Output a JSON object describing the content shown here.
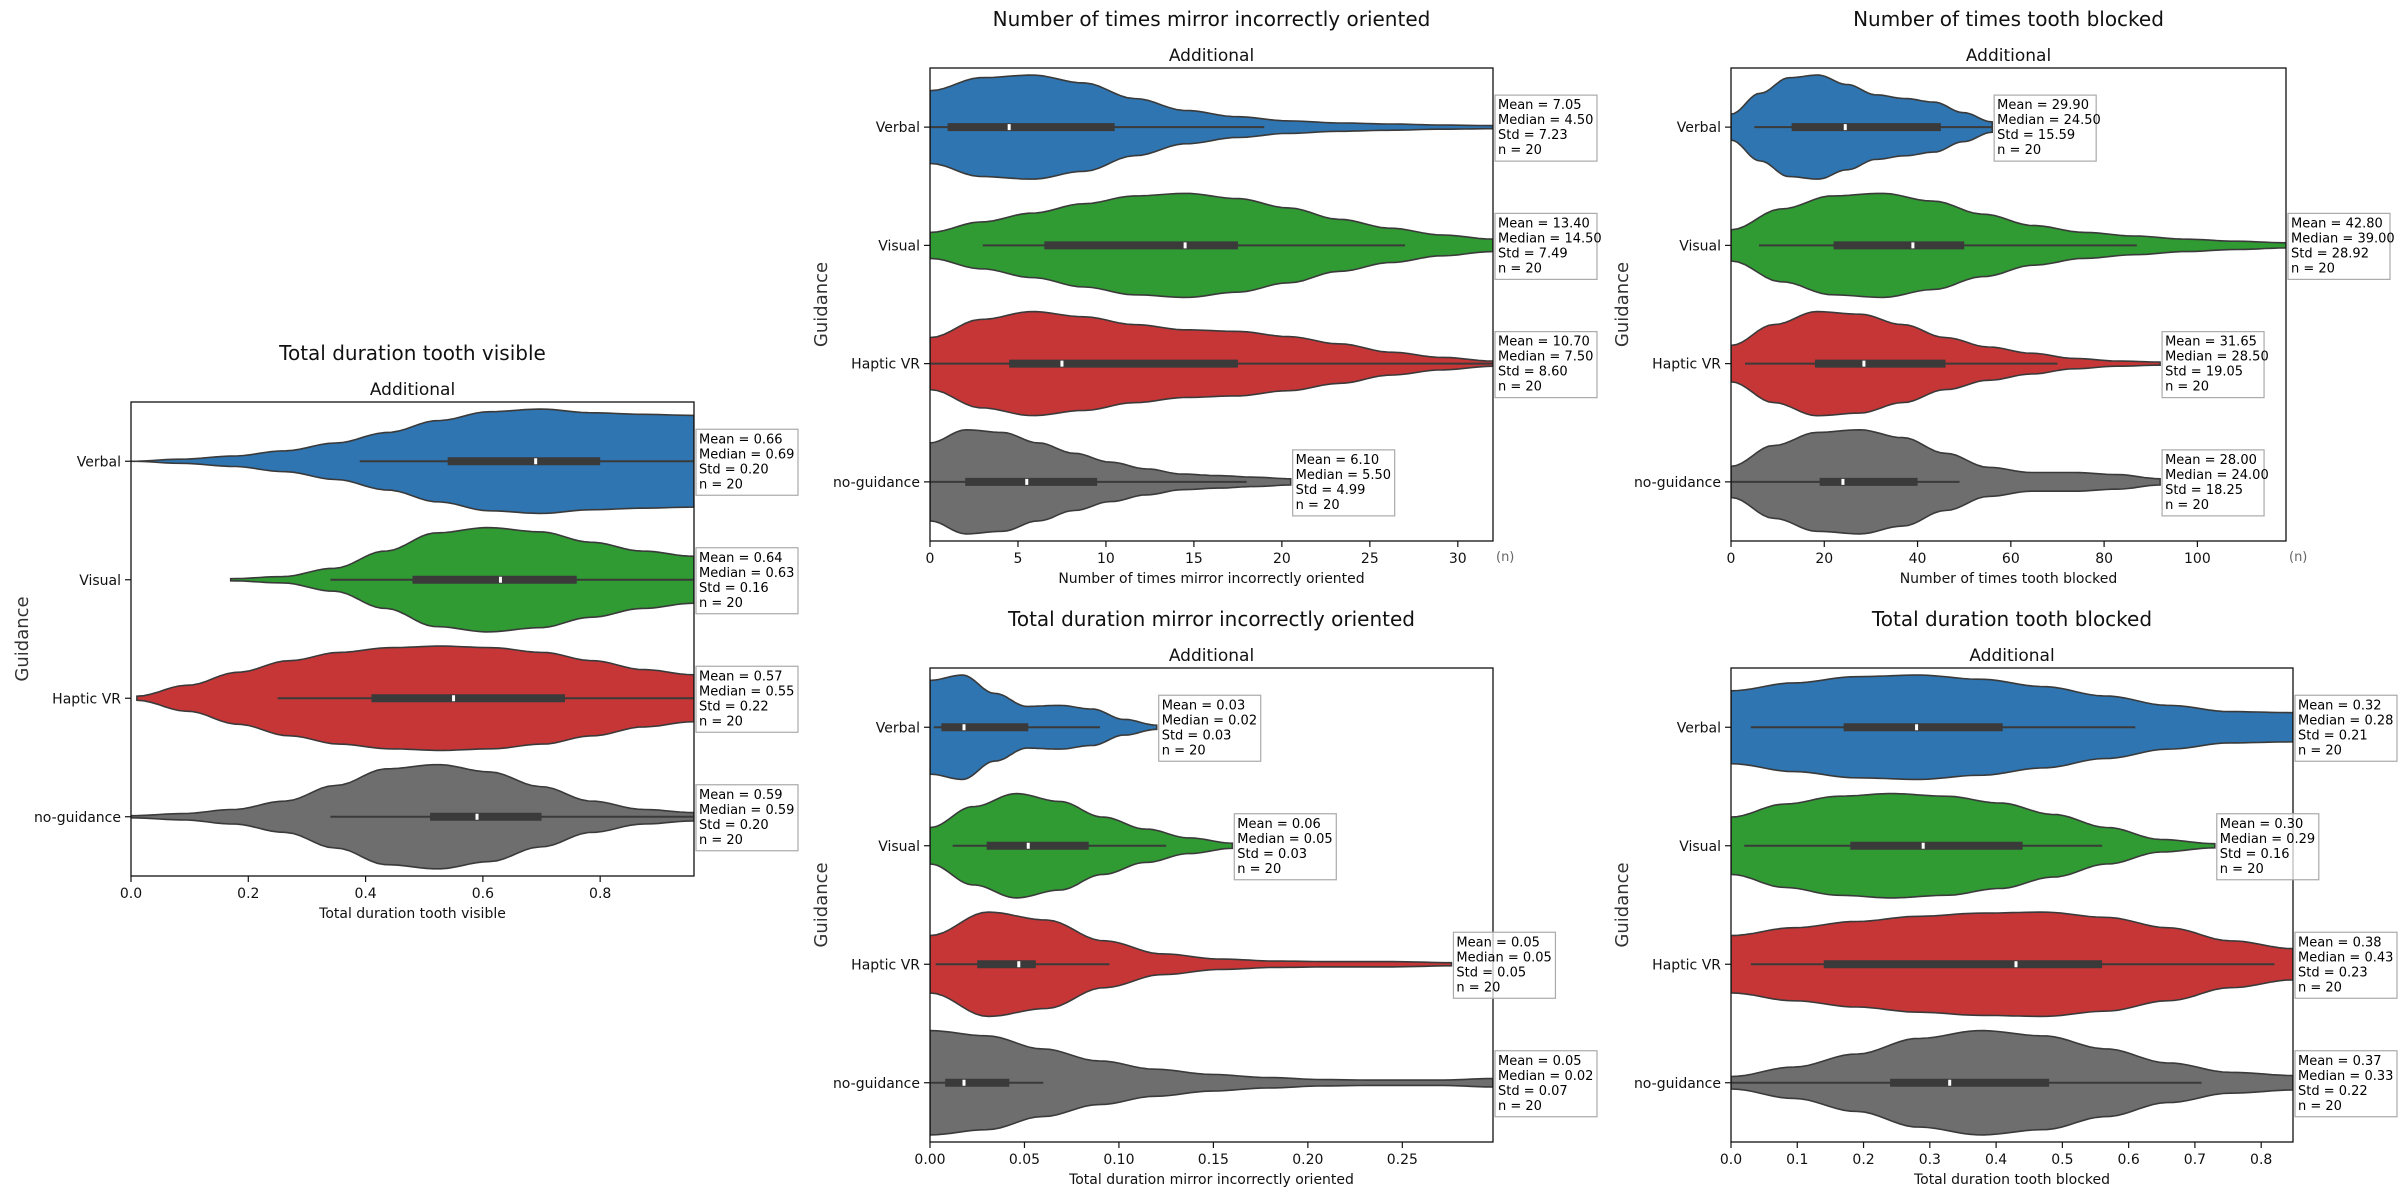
{
  "colors": {
    "Verbal": "#2e75b1",
    "Visual": "#309a33",
    "Haptic VR": "#c73637",
    "no-guidance": "#6e6e6e"
  },
  "chart_data": [
    {
      "type": "violin",
      "title": "Total duration tooth visible",
      "subtitle": "Additional",
      "xlabel": "Total duration tooth visible",
      "ylabel": "Guidance",
      "unit_label": "",
      "xlim": [
        0,
        0.96
      ],
      "xticks": [
        0,
        0.2,
        0.4,
        0.6,
        0.8
      ],
      "xtick_labels": [
        "0.0",
        "0.2",
        "0.4",
        "0.6",
        "0.8"
      ],
      "categories": [
        "Verbal",
        "Visual",
        "Haptic VR",
        "no-guidance"
      ],
      "series": [
        {
          "name": "Verbal",
          "min": 0.0,
          "max": 0.96,
          "q1": 0.54,
          "median": 0.69,
          "q3": 0.8,
          "whisker_low": 0.39,
          "whisker_high": 0.96,
          "density": [
            0.0,
            0.04,
            0.1,
            0.2,
            0.35,
            0.55,
            0.78,
            0.95,
            1.0,
            0.93,
            0.9,
            0.88
          ],
          "stats": {
            "mean": "Mean = 0.66",
            "median": "Median = 0.69",
            "std": "Std = 0.20",
            "n": "n = 20"
          }
        },
        {
          "name": "Visual",
          "min": 0.17,
          "max": 0.96,
          "q1": 0.48,
          "median": 0.63,
          "q3": 0.76,
          "whisker_low": 0.34,
          "whisker_high": 0.96,
          "density": [
            0.02,
            0.06,
            0.22,
            0.55,
            0.9,
            1.0,
            0.92,
            0.72,
            0.55,
            0.45
          ],
          "stats": {
            "mean": "Mean = 0.64",
            "median": "Median = 0.63",
            "std": "Std = 0.16",
            "n": "n = 20"
          }
        },
        {
          "name": "Haptic VR",
          "min": 0.01,
          "max": 0.96,
          "q1": 0.41,
          "median": 0.55,
          "q3": 0.74,
          "whisker_low": 0.25,
          "whisker_high": 0.96,
          "density": [
            0.04,
            0.25,
            0.5,
            0.72,
            0.88,
            0.97,
            1.0,
            0.97,
            0.88,
            0.72,
            0.55,
            0.45
          ],
          "stats": {
            "mean": "Mean = 0.57",
            "median": "Median = 0.55",
            "std": "Std = 0.22",
            "n": "n = 20"
          }
        },
        {
          "name": "no-guidance",
          "min": 0.0,
          "max": 0.96,
          "q1": 0.51,
          "median": 0.59,
          "q3": 0.7,
          "whisker_low": 0.34,
          "whisker_high": 0.96,
          "density": [
            0.02,
            0.06,
            0.14,
            0.3,
            0.6,
            0.92,
            1.0,
            0.86,
            0.58,
            0.3,
            0.14,
            0.08
          ],
          "stats": {
            "mean": "Mean = 0.59",
            "median": "Median = 0.59",
            "std": "Std = 0.20",
            "n": "n = 20"
          }
        }
      ]
    },
    {
      "type": "violin",
      "title": "Number of times mirror incorrectly oriented",
      "subtitle": "Additional",
      "xlabel": "Number of times mirror incorrectly oriented",
      "ylabel": "Guidance",
      "unit_label": "(n)",
      "xlim": [
        0,
        32
      ],
      "xticks": [
        0,
        5,
        10,
        15,
        20,
        25,
        30
      ],
      "xtick_labels": [
        "0",
        "5",
        "10",
        "15",
        "20",
        "25",
        "30"
      ],
      "categories": [
        "Verbal",
        "Visual",
        "Haptic VR",
        "no-guidance"
      ],
      "series": [
        {
          "name": "Verbal",
          "min": 0,
          "max": 32,
          "q1": 1,
          "median": 4.5,
          "q3": 10.5,
          "whisker_low": 0,
          "whisker_high": 19,
          "density": [
            0.7,
            0.95,
            1.0,
            0.85,
            0.55,
            0.32,
            0.2,
            0.12,
            0.08,
            0.06,
            0.04,
            0.03
          ],
          "stats": {
            "mean": "Mean = 7.05",
            "median": "Median = 4.50",
            "std": "Std = 7.23",
            "n": "n = 20"
          }
        },
        {
          "name": "Visual",
          "min": 0,
          "max": 32,
          "q1": 6.5,
          "median": 14.5,
          "q3": 17.5,
          "whisker_low": 3,
          "whisker_high": 27,
          "density": [
            0.25,
            0.45,
            0.62,
            0.8,
            0.95,
            1.0,
            0.9,
            0.72,
            0.5,
            0.33,
            0.2,
            0.12
          ],
          "stats": {
            "mean": "Mean = 13.40",
            "median": "Median = 14.50",
            "std": "Std = 7.49",
            "n": "n = 20"
          }
        },
        {
          "name": "Haptic VR",
          "min": 0,
          "max": 32,
          "q1": 4.5,
          "median": 7.5,
          "q3": 17.5,
          "whisker_low": 0,
          "whisker_high": 32,
          "density": [
            0.5,
            0.85,
            1.0,
            0.9,
            0.75,
            0.65,
            0.62,
            0.52,
            0.38,
            0.22,
            0.12,
            0.05
          ],
          "stats": {
            "mean": "Mean = 10.70",
            "median": "Median = 7.50",
            "std": "Std = 8.60",
            "n": "n = 20"
          }
        },
        {
          "name": "no-guidance",
          "min": 0,
          "max": 20.5,
          "q1": 2,
          "median": 5.5,
          "q3": 9.5,
          "whisker_low": 0,
          "whisker_high": 18,
          "density": [
            0.75,
            1.0,
            0.95,
            0.75,
            0.55,
            0.38,
            0.25,
            0.15,
            0.12,
            0.09,
            0.06
          ],
          "stats": {
            "mean": "Mean = 6.10",
            "median": "Median = 5.50",
            "std": "Std = 4.99",
            "n": "n = 20"
          }
        }
      ]
    },
    {
      "type": "violin",
      "title": "Number of times tooth blocked",
      "subtitle": "Additional",
      "xlabel": "Number of times tooth blocked",
      "ylabel": "Guidance",
      "unit_label": "(n)",
      "xlim": [
        0,
        119
      ],
      "xticks": [
        0,
        20,
        40,
        60,
        80,
        100
      ],
      "xtick_labels": [
        "0",
        "20",
        "40",
        "60",
        "80",
        "100"
      ],
      "categories": [
        "Verbal",
        "Visual",
        "Haptic VR",
        "no-guidance"
      ],
      "series": [
        {
          "name": "Verbal",
          "min": 0,
          "max": 56,
          "q1": 13,
          "median": 24.5,
          "q3": 45,
          "whisker_low": 5,
          "whisker_high": 56,
          "density": [
            0.25,
            0.65,
            0.95,
            1.0,
            0.82,
            0.62,
            0.55,
            0.48,
            0.28,
            0.1
          ],
          "stats": {
            "mean": "Mean = 29.90",
            "median": "Median = 24.50",
            "std": "Std = 15.59",
            "n": "n = 20"
          }
        },
        {
          "name": "Visual",
          "min": 0,
          "max": 119,
          "q1": 22,
          "median": 39,
          "q3": 50,
          "whisker_low": 6,
          "whisker_high": 87,
          "density": [
            0.3,
            0.7,
            0.95,
            1.0,
            0.85,
            0.6,
            0.38,
            0.25,
            0.18,
            0.12,
            0.08,
            0.05
          ],
          "stats": {
            "mean": "Mean = 42.80",
            "median": "Median = 39.00",
            "std": "Std = 28.92",
            "n": "n = 20"
          }
        },
        {
          "name": "Haptic VR",
          "min": 0,
          "max": 92,
          "q1": 18,
          "median": 28.5,
          "q3": 46,
          "whisker_low": 3,
          "whisker_high": 70,
          "density": [
            0.35,
            0.75,
            1.0,
            0.95,
            0.75,
            0.5,
            0.32,
            0.2,
            0.1,
            0.05,
            0.03
          ],
          "stats": {
            "mean": "Mean = 31.65",
            "median": "Median = 28.50",
            "std": "Std = 19.05",
            "n": "n = 20"
          }
        },
        {
          "name": "no-guidance",
          "min": 0,
          "max": 92,
          "q1": 19,
          "median": 24,
          "q3": 40,
          "whisker_low": 0,
          "whisker_high": 49,
          "density": [
            0.3,
            0.7,
            0.95,
            1.0,
            0.85,
            0.55,
            0.28,
            0.18,
            0.18,
            0.14,
            0.06
          ],
          "stats": {
            "mean": "Mean = 28.00",
            "median": "Median = 24.00",
            "std": "Std = 18.25",
            "n": "n = 20"
          }
        }
      ]
    },
    {
      "type": "violin",
      "title": "Total duration mirror incorrectly oriented",
      "subtitle": "Additional",
      "xlabel": "Total duration mirror incorrectly oriented",
      "ylabel": "Guidance",
      "unit_label": "",
      "xlim": [
        0,
        0.298
      ],
      "xticks": [
        0,
        0.05,
        0.1,
        0.15,
        0.2,
        0.25
      ],
      "xtick_labels": [
        "0.00",
        "0.05",
        "0.10",
        "0.15",
        "0.20",
        "0.25"
      ],
      "categories": [
        "Verbal",
        "Visual",
        "Haptic VR",
        "no-guidance"
      ],
      "series": [
        {
          "name": "Verbal",
          "min": 0,
          "max": 0.12,
          "q1": 0.006,
          "median": 0.018,
          "q3": 0.052,
          "whisker_low": 0.002,
          "whisker_high": 0.09,
          "density": [
            0.9,
            1.0,
            0.65,
            0.4,
            0.42,
            0.35,
            0.15,
            0.04
          ],
          "stats": {
            "mean": "Mean = 0.03",
            "median": "Median = 0.02",
            "std": "Std = 0.03",
            "n": "n = 20"
          }
        },
        {
          "name": "Visual",
          "min": 0,
          "max": 0.16,
          "q1": 0.03,
          "median": 0.052,
          "q3": 0.084,
          "whisker_low": 0.012,
          "whisker_high": 0.125,
          "density": [
            0.35,
            0.75,
            1.0,
            0.85,
            0.55,
            0.32,
            0.15,
            0.05
          ],
          "stats": {
            "mean": "Mean = 0.06",
            "median": "Median = 0.05",
            "std": "Std = 0.03",
            "n": "n = 20"
          }
        },
        {
          "name": "Haptic VR",
          "min": 0,
          "max": 0.276,
          "q1": 0.025,
          "median": 0.047,
          "q3": 0.056,
          "whisker_low": 0.003,
          "whisker_high": 0.095,
          "density": [
            0.55,
            1.0,
            0.85,
            0.45,
            0.2,
            0.1,
            0.06,
            0.05,
            0.05,
            0.03
          ],
          "stats": {
            "mean": "Mean = 0.05",
            "median": "Median = 0.05",
            "std": "Std = 0.05",
            "n": "n = 20"
          }
        },
        {
          "name": "no-guidance",
          "min": 0,
          "max": 0.298,
          "q1": 0.008,
          "median": 0.018,
          "q3": 0.042,
          "whisker_low": 0.0,
          "whisker_high": 0.06,
          "density": [
            1.0,
            0.9,
            0.65,
            0.42,
            0.26,
            0.16,
            0.1,
            0.06,
            0.05,
            0.05,
            0.08
          ],
          "stats": {
            "mean": "Mean = 0.05",
            "median": "Median = 0.02",
            "std": "Std = 0.07",
            "n": "n = 20"
          }
        }
      ]
    },
    {
      "type": "violin",
      "title": "Total duration tooth blocked",
      "subtitle": "Additional",
      "xlabel": "Total duration tooth blocked",
      "ylabel": "Guidance",
      "unit_label": "",
      "xlim": [
        0,
        0.848
      ],
      "xticks": [
        0,
        0.1,
        0.2,
        0.3,
        0.4,
        0.5,
        0.6,
        0.7,
        0.8
      ],
      "xtick_labels": [
        "0.0",
        "0.1",
        "0.2",
        "0.3",
        "0.4",
        "0.5",
        "0.6",
        "0.7",
        "0.8"
      ],
      "categories": [
        "Verbal",
        "Visual",
        "Haptic VR",
        "no-guidance"
      ],
      "series": [
        {
          "name": "Verbal",
          "min": 0,
          "max": 0.848,
          "q1": 0.17,
          "median": 0.28,
          "q3": 0.41,
          "whisker_low": 0.03,
          "whisker_high": 0.61,
          "density": [
            0.7,
            0.85,
            0.97,
            1.0,
            0.92,
            0.78,
            0.6,
            0.42,
            0.3,
            0.28
          ],
          "stats": {
            "mean": "Mean = 0.32",
            "median": "Median = 0.28",
            "std": "Std = 0.21",
            "n": "n = 20"
          }
        },
        {
          "name": "Visual",
          "min": 0,
          "max": 0.73,
          "q1": 0.18,
          "median": 0.29,
          "q3": 0.44,
          "whisker_low": 0.02,
          "whisker_high": 0.56,
          "density": [
            0.55,
            0.8,
            0.95,
            1.0,
            0.95,
            0.82,
            0.6,
            0.35,
            0.12,
            0.04
          ],
          "stats": {
            "mean": "Mean = 0.30",
            "median": "Median = 0.29",
            "std": "Std = 0.16",
            "n": "n = 20"
          }
        },
        {
          "name": "Haptic VR",
          "min": 0,
          "max": 0.848,
          "q1": 0.14,
          "median": 0.43,
          "q3": 0.56,
          "whisker_low": 0.03,
          "whisker_high": 0.82,
          "density": [
            0.55,
            0.7,
            0.82,
            0.92,
            0.98,
            1.0,
            0.9,
            0.7,
            0.45,
            0.3
          ],
          "stats": {
            "mean": "Mean = 0.38",
            "median": "Median = 0.43",
            "std": "Std = 0.23",
            "n": "n = 20"
          }
        },
        {
          "name": "no-guidance",
          "min": 0,
          "max": 0.848,
          "q1": 0.24,
          "median": 0.33,
          "q3": 0.48,
          "whisker_low": 0.0,
          "whisker_high": 0.71,
          "density": [
            0.12,
            0.3,
            0.55,
            0.85,
            1.0,
            0.9,
            0.65,
            0.38,
            0.2,
            0.14
          ],
          "stats": {
            "mean": "Mean = 0.37",
            "median": "Median = 0.33",
            "std": "Std = 0.22",
            "n": "n = 20"
          }
        }
      ]
    }
  ]
}
